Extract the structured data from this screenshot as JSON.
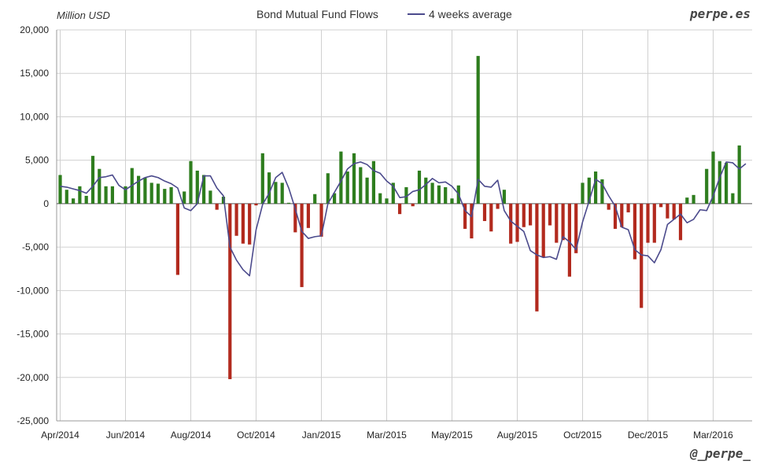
{
  "chart_data": {
    "type": "bar",
    "title": "Bond Mutual Fund Flows",
    "unit_label": "Million USD",
    "brand_top": "perpe.es",
    "brand_bottom": "@_perpe_",
    "ylim": [
      -25000,
      20000
    ],
    "yticks": [
      20000,
      15000,
      10000,
      5000,
      0,
      -5000,
      -10000,
      -15000,
      -20000,
      -25000
    ],
    "ytick_labels": [
      "20,000",
      "15,000",
      "10,000",
      "5,000",
      "0",
      "-5,000",
      "-10,000",
      "-15,000",
      "-20,000",
      "-25,000"
    ],
    "xticks": [
      {
        "label": "Apr/2014",
        "week": 0
      },
      {
        "label": "Jun/2014",
        "week": 10
      },
      {
        "label": "Aug/2014",
        "week": 20
      },
      {
        "label": "Oct/2014",
        "week": 30
      },
      {
        "label": "Jan/2015",
        "week": 40
      },
      {
        "label": "Mar/2015",
        "week": 50
      },
      {
        "label": "May/2015",
        "week": 60
      },
      {
        "label": "Aug/2015",
        "week": 70
      },
      {
        "label": "Oct/2015",
        "week": 80
      },
      {
        "label": "Dec/2015",
        "week": 90
      },
      {
        "label": "Mar/2016",
        "week": 100
      }
    ],
    "grid": true,
    "series": [
      {
        "type": "bar",
        "positive_color": "#2e7d1e",
        "negative_color": "#b22a1e",
        "values": [
          3300,
          1600,
          600,
          2000,
          900,
          5500,
          4000,
          2000,
          2000,
          100,
          2000,
          4100,
          3200,
          3000,
          2400,
          2300,
          1700,
          1900,
          -8200,
          1400,
          4900,
          3800,
          3300,
          1500,
          -700,
          800,
          -20200,
          -3700,
          -4600,
          -4700,
          -200,
          5800,
          3600,
          2500,
          2400,
          100,
          -3300,
          -9600,
          -2800,
          1100,
          -3800,
          3500,
          1200,
          6000,
          3700,
          5800,
          4200,
          3000,
          4900,
          1200,
          600,
          2400,
          -1200,
          1900,
          -300,
          3800,
          3000,
          2400,
          2100,
          1900,
          600,
          2100,
          -2900,
          -4000,
          17000,
          -2000,
          -3200,
          -600,
          1600,
          -4600,
          -4400,
          -2700,
          -2500,
          -12400,
          -6200,
          -2500,
          -4500,
          -4200,
          -8400,
          -5700,
          2400,
          3000,
          3700,
          2800,
          -700,
          -2900,
          -2700,
          -1000,
          -6400,
          -12000,
          -4500,
          -4500,
          -400,
          -1700,
          -1800,
          -4200,
          700,
          1000,
          0,
          4000,
          6000,
          4900,
          4700,
          1200,
          6700
        ]
      },
      {
        "type": "line",
        "name": "4 weeks average",
        "color": "#4b4a8c",
        "values": [
          2000,
          1900,
          1700,
          1500,
          1200,
          2000,
          3000,
          3100,
          3300,
          2100,
          1600,
          2100,
          2600,
          3000,
          3200,
          3000,
          2600,
          2300,
          1800,
          -500,
          -800,
          0,
          3200,
          3200,
          1800,
          900,
          -5000,
          -6500,
          -7600,
          -8300,
          -3000,
          -100,
          1200,
          3000,
          3600,
          1800,
          -600,
          -3200,
          -4000,
          -3800,
          -3700,
          0,
          1300,
          2600,
          4000,
          4600,
          4800,
          4500,
          3800,
          3500,
          2600,
          2000,
          700,
          800,
          1400,
          1600,
          2200,
          2900,
          2400,
          2500,
          2000,
          1100,
          -800,
          -1500,
          2800,
          2000,
          1900,
          2700,
          -800,
          -2000,
          -2600,
          -3200,
          -5400,
          -5900,
          -6200,
          -6100,
          -6400,
          -3800,
          -4400,
          -5300,
          -2100,
          300,
          2800,
          2300,
          900,
          -300,
          -2700,
          -3000,
          -5300,
          -5900,
          -6000,
          -6800,
          -5300,
          -2400,
          -1800,
          -1200,
          -2200,
          -1800,
          -700,
          -800,
          900,
          3000,
          4800,
          4700,
          4000,
          4600
        ]
      }
    ]
  }
}
